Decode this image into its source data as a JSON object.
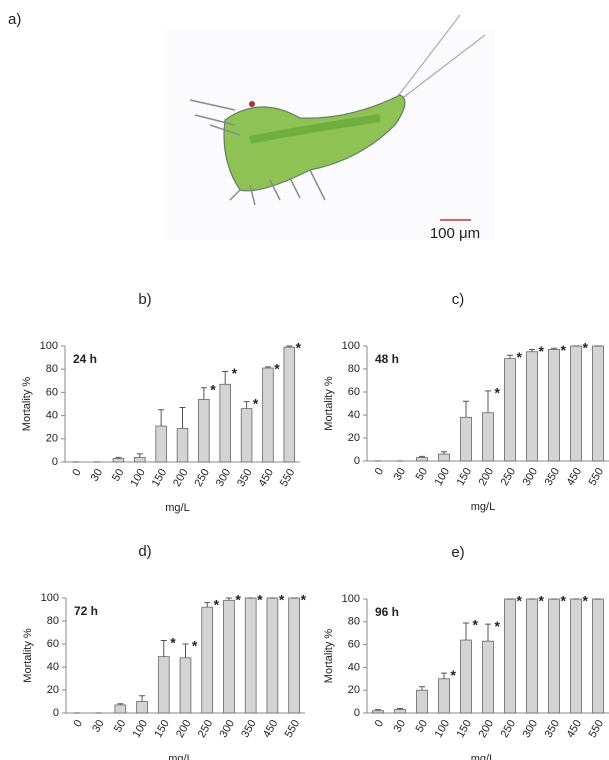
{
  "panel_a": {
    "label": "a)",
    "scale_bar": "100 μm"
  },
  "chart_data": [
    {
      "type": "bar",
      "panel_label": "b)",
      "annotation": "24 h",
      "x_label": "mg/L",
      "y_label": "Mortality %",
      "categories": [
        "0",
        "30",
        "50",
        "100",
        "150",
        "200",
        "250",
        "300",
        "350",
        "450",
        "550"
      ],
      "values": [
        0,
        0,
        3,
        4,
        31,
        29,
        54,
        67,
        46,
        81,
        99
      ],
      "errors": [
        0,
        0,
        1,
        3,
        14,
        18,
        10,
        11,
        6,
        1,
        1
      ],
      "significance": [
        null,
        null,
        null,
        null,
        null,
        null,
        "*",
        "*",
        "*",
        "*",
        "*"
      ],
      "color": "#d4d4d4",
      "ylim": [
        0,
        100
      ],
      "yticks": [
        0,
        20,
        40,
        60,
        80,
        100
      ]
    },
    {
      "type": "bar",
      "panel_label": "c)",
      "annotation": "48 h",
      "x_label": "mg/L",
      "y_label": "Mortality %",
      "categories": [
        "0",
        "30",
        "50",
        "100",
        "150",
        "200",
        "250",
        "300",
        "350",
        "450",
        "550"
      ],
      "values": [
        0,
        0,
        3,
        6,
        38,
        42,
        89,
        95,
        97,
        100,
        100
      ],
      "errors": [
        0,
        0,
        1,
        2,
        14,
        19,
        3,
        2,
        1,
        0,
        0
      ],
      "significance": [
        null,
        null,
        null,
        null,
        null,
        "*",
        "*",
        "*",
        "*",
        "*",
        null
      ],
      "color": "#d4d4d4",
      "ylim": [
        0,
        100
      ],
      "yticks": [
        0,
        20,
        40,
        60,
        80,
        100
      ]
    },
    {
      "type": "bar",
      "panel_label": "d)",
      "annotation": "72 h",
      "x_label": "mg/L",
      "y_label": "Mortality %",
      "categories": [
        "0",
        "30",
        "50",
        "100",
        "150",
        "200",
        "250",
        "300",
        "350",
        "450",
        "550"
      ],
      "values": [
        0,
        0,
        7,
        10,
        49,
        48,
        92,
        98,
        100,
        100,
        100
      ],
      "errors": [
        0,
        0,
        1,
        5,
        14,
        12,
        4,
        2,
        0,
        0,
        0
      ],
      "significance": [
        null,
        null,
        null,
        null,
        "*",
        "*",
        "*",
        "*",
        "*",
        "*",
        "*"
      ],
      "color": "#d4d4d4",
      "ylim": [
        0,
        100
      ],
      "yticks": [
        0,
        20,
        40,
        60,
        80,
        100
      ]
    },
    {
      "type": "bar",
      "panel_label": "e)",
      "annotation": "96 h",
      "x_label": "mg/L",
      "y_label": "Mortality %",
      "categories": [
        "0",
        "30",
        "50",
        "100",
        "150",
        "200",
        "250",
        "300",
        "350",
        "450",
        "550"
      ],
      "values": [
        2,
        3,
        20,
        30,
        64,
        63,
        100,
        100,
        100,
        100,
        100
      ],
      "errors": [
        1,
        1,
        3,
        5,
        15,
        15,
        0,
        0,
        0,
        0,
        0
      ],
      "significance": [
        null,
        null,
        null,
        "*",
        "*",
        "*",
        "*",
        "*",
        "*",
        "*",
        null
      ],
      "color": "#d4d4d4",
      "ylim": [
        0,
        100
      ],
      "yticks": [
        0,
        20,
        40,
        60,
        80,
        100
      ]
    }
  ]
}
